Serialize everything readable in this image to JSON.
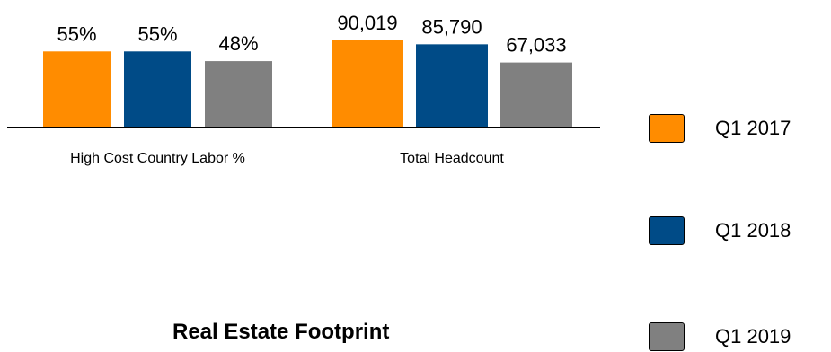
{
  "chart_data": [
    {
      "type": "bar",
      "categories": [
        "Q1 2017",
        "Q1 2018",
        "Q1 2019"
      ],
      "values": [
        55,
        55,
        48
      ],
      "labels": [
        "55%",
        "55%",
        "48%"
      ],
      "xlabel": "High Cost Country Labor %",
      "colors": [
        "#FF8C00",
        "#004B87",
        "#808080"
      ]
    },
    {
      "type": "bar",
      "categories": [
        "Q1 2017",
        "Q1 2018",
        "Q1 2019"
      ],
      "values": [
        90019,
        85790,
        67033
      ],
      "labels": [
        "90,019",
        "85,790",
        "67,033"
      ],
      "xlabel": "Total Headcount",
      "colors": [
        "#FF8C00",
        "#004B87",
        "#808080"
      ]
    }
  ],
  "legend": {
    "items": [
      {
        "label": "Q1 2017",
        "color": "#FF8C00"
      },
      {
        "label": "Q1 2018",
        "color": "#004B87"
      },
      {
        "label": "Q1 2019",
        "color": "#808080"
      }
    ]
  },
  "section_title": "Real Estate Footprint"
}
